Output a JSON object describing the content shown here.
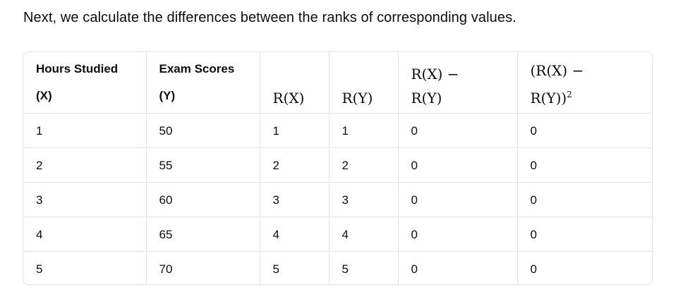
{
  "intro_text": "Next, we calculate the differences between the ranks of corresponding values.",
  "table": {
    "headers": {
      "hours_line1": "Hours Studied",
      "hours_line2": "(X)",
      "scores_line1": "Exam Scores",
      "scores_line2": "(Y)",
      "rx": "R(X)",
      "ry": "R(Y)",
      "diff_line1": "R(X) −",
      "diff_line2": "R(Y)",
      "sq_line1": "(R(X) −",
      "sq_line2": "R(Y))",
      "sq_exp": "2"
    },
    "rows": [
      [
        "1",
        "50",
        "1",
        "1",
        "0",
        "0"
      ],
      [
        "2",
        "55",
        "2",
        "2",
        "0",
        "0"
      ],
      [
        "3",
        "60",
        "3",
        "3",
        "0",
        "0"
      ],
      [
        "4",
        "65",
        "4",
        "4",
        "0",
        "0"
      ],
      [
        "5",
        "70",
        "5",
        "5",
        "0",
        "0"
      ]
    ]
  }
}
